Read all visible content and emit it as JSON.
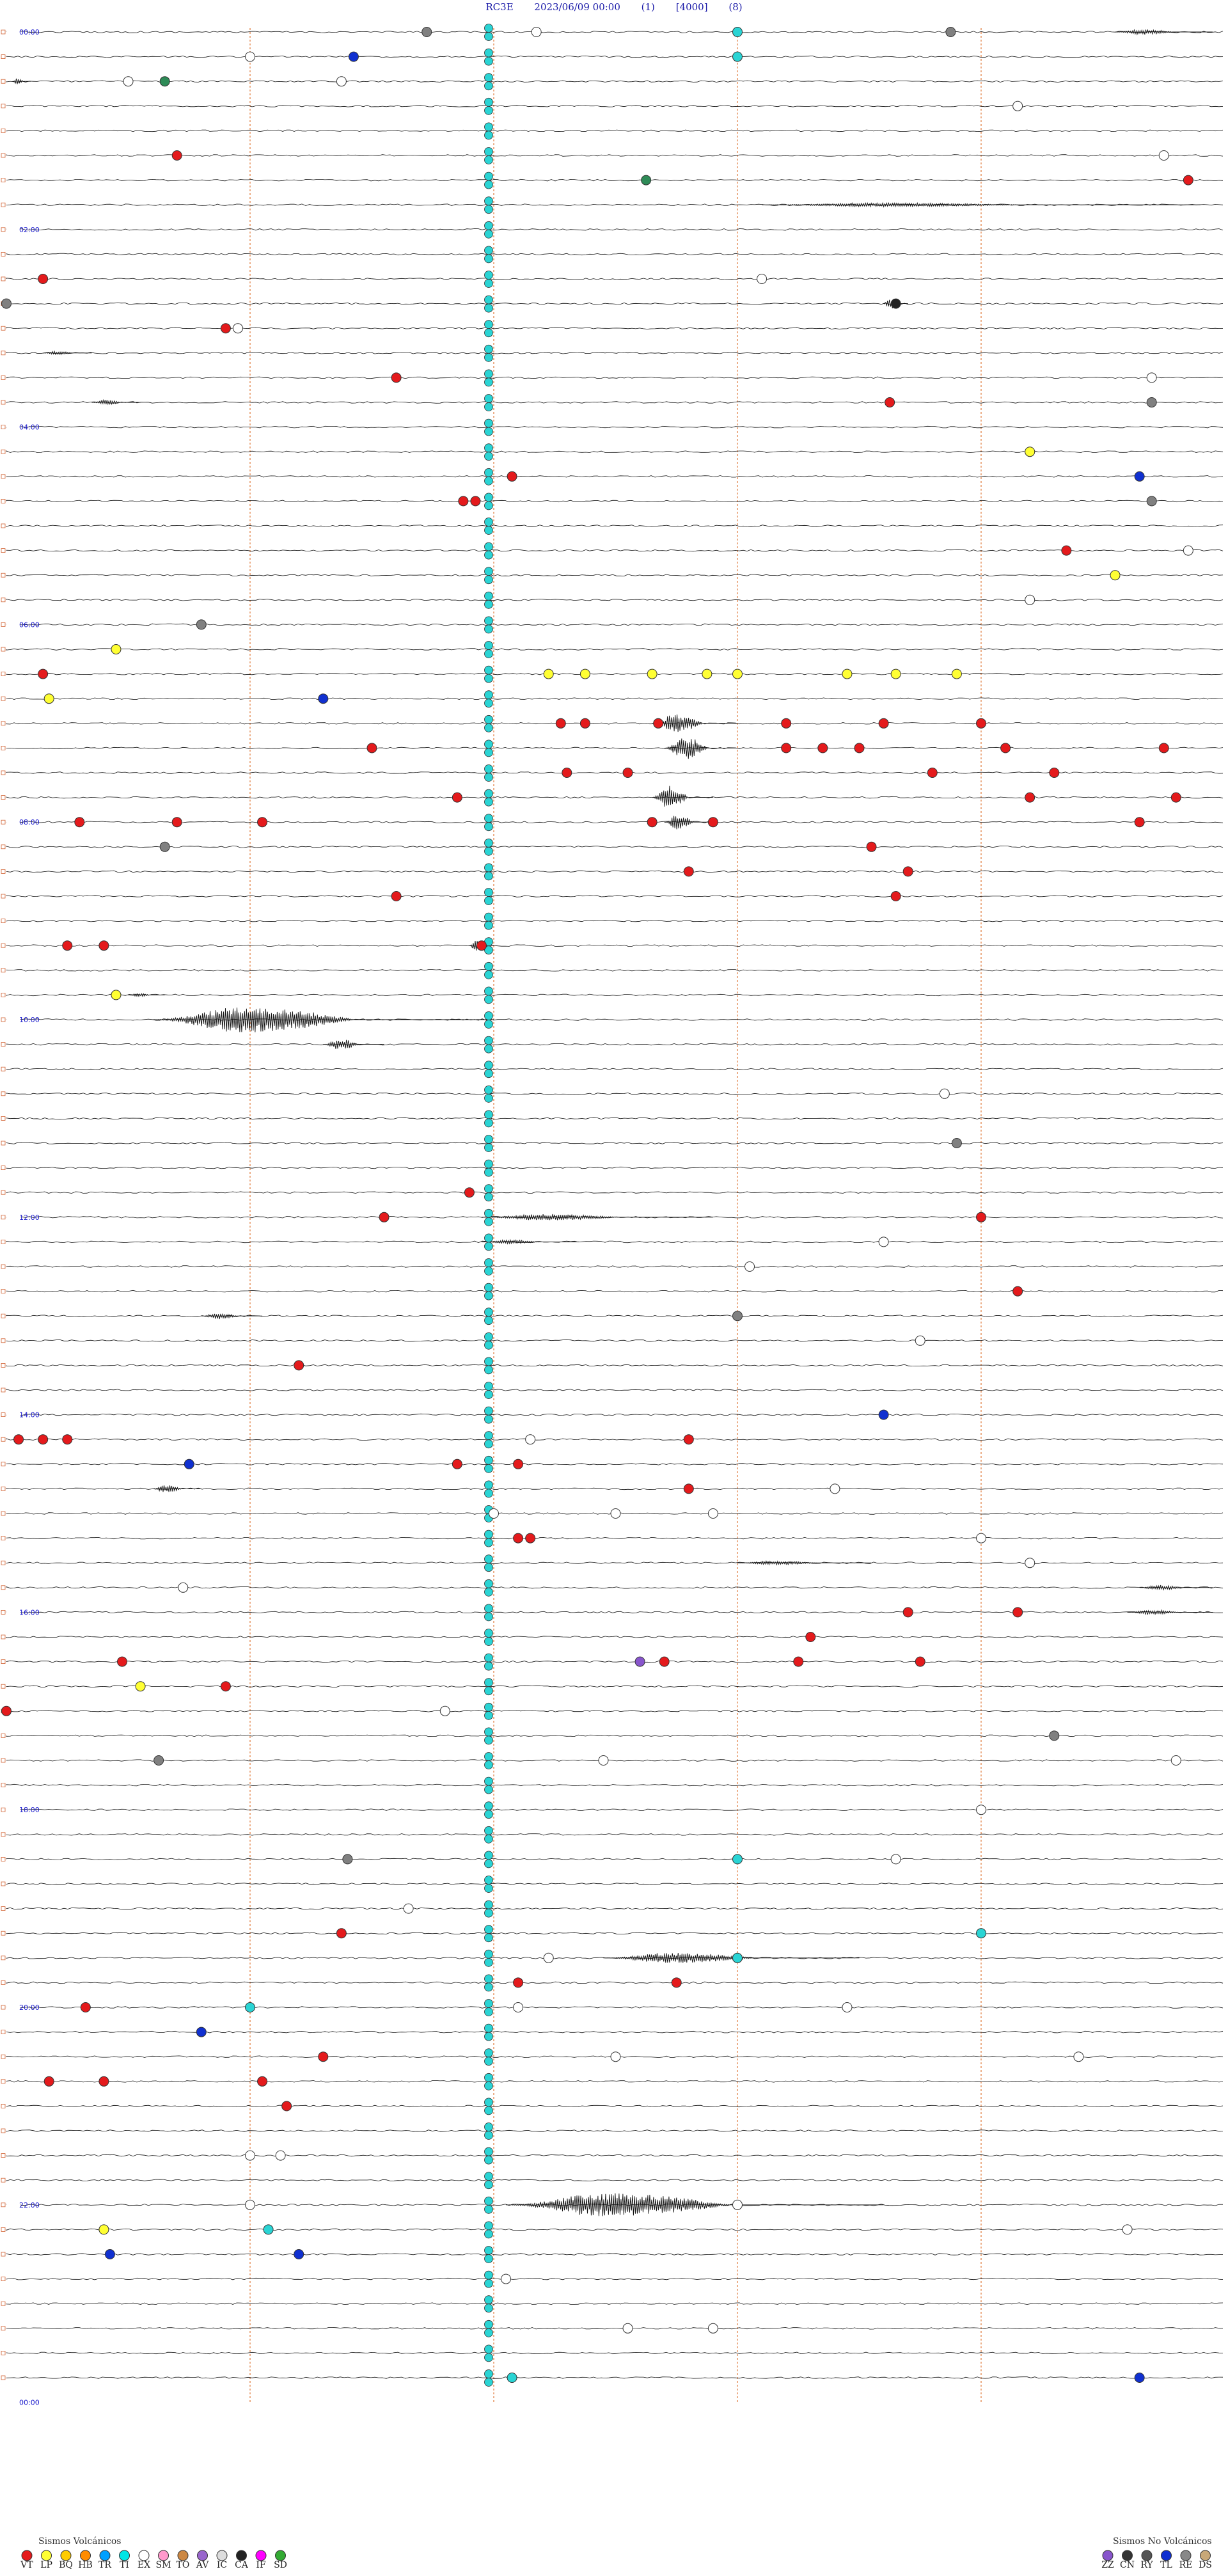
{
  "header": {
    "station": "RC3E",
    "datetime": "2023/06/09 00:00",
    "channel": "(1)",
    "gain": "[4000]",
    "filter": "(8)"
  },
  "chart_data": {
    "type": "helicorder",
    "trace_count": 96,
    "hour_labels": [
      {
        "row": 0,
        "text": "00:00"
      },
      {
        "row": 8,
        "text": "02:00"
      },
      {
        "row": 16,
        "text": "04:00"
      },
      {
        "row": 24,
        "text": "06:00"
      },
      {
        "row": 32,
        "text": "08:00"
      },
      {
        "row": 40,
        "text": "10:00"
      },
      {
        "row": 48,
        "text": "12:00"
      },
      {
        "row": 56,
        "text": "14:00"
      },
      {
        "row": 64,
        "text": "16:00"
      },
      {
        "row": 72,
        "text": "18:00"
      },
      {
        "row": 80,
        "text": "20:00"
      },
      {
        "row": 88,
        "text": "22:00"
      },
      {
        "row": 96,
        "text": "00:00"
      }
    ],
    "minute_markers": [
      0.2,
      0.4,
      0.6,
      0.8
    ],
    "colors": {
      "trace": "#111111",
      "marker_line": "#e07838",
      "hour_label": "#1a1acc",
      "ti_column": "#2ad4d4"
    },
    "ti_column_fraction": 0.4,
    "events": [
      {
        "row": 0,
        "t": 0.345,
        "c": "gray"
      },
      {
        "row": 0,
        "t": 0.435,
        "c": "white"
      },
      {
        "row": 0,
        "t": 0.6,
        "c": "cyan"
      },
      {
        "row": 0,
        "t": 0.775,
        "c": "gray"
      },
      {
        "row": 1,
        "t": 0.2,
        "c": "white"
      },
      {
        "row": 1,
        "t": 0.285,
        "c": "blue"
      },
      {
        "row": 1,
        "t": 0.6,
        "c": "cyan"
      },
      {
        "row": 2,
        "t": 0.1,
        "c": "white"
      },
      {
        "row": 2,
        "t": 0.13,
        "c": "green"
      },
      {
        "row": 2,
        "t": 0.275,
        "c": "white"
      },
      {
        "row": 3,
        "t": 0.83,
        "c": "white"
      },
      {
        "row": 5,
        "t": 0.14,
        "c": "red"
      },
      {
        "row": 5,
        "t": 0.95,
        "c": "white"
      },
      {
        "row": 6,
        "t": 0.525,
        "c": "green"
      },
      {
        "row": 6,
        "t": 0.97,
        "c": "red"
      },
      {
        "row": 10,
        "t": 0.03,
        "c": "red"
      },
      {
        "row": 10,
        "t": 0.62,
        "c": "white"
      },
      {
        "row": 11,
        "t": 0.0,
        "c": "gray"
      },
      {
        "row": 11,
        "t": 0.73,
        "c": "black"
      },
      {
        "row": 12,
        "t": 0.18,
        "c": "red"
      },
      {
        "row": 12,
        "t": 0.19,
        "c": "white"
      },
      {
        "row": 14,
        "t": 0.32,
        "c": "red"
      },
      {
        "row": 14,
        "t": 0.94,
        "c": "white"
      },
      {
        "row": 15,
        "t": 0.725,
        "c": "red"
      },
      {
        "row": 15,
        "t": 0.94,
        "c": "gray"
      },
      {
        "row": 17,
        "t": 0.84,
        "c": "yellow"
      },
      {
        "row": 18,
        "t": 0.415,
        "c": "red"
      },
      {
        "row": 18,
        "t": 0.93,
        "c": "blue"
      },
      {
        "row": 19,
        "t": 0.375,
        "c": "red"
      },
      {
        "row": 19,
        "t": 0.385,
        "c": "red"
      },
      {
        "row": 19,
        "t": 0.94,
        "c": "gray"
      },
      {
        "row": 21,
        "t": 0.87,
        "c": "red"
      },
      {
        "row": 21,
        "t": 0.97,
        "c": "white"
      },
      {
        "row": 22,
        "t": 0.91,
        "c": "yellow"
      },
      {
        "row": 23,
        "t": 0.84,
        "c": "white"
      },
      {
        "row": 24,
        "t": 0.16,
        "c": "gray"
      },
      {
        "row": 25,
        "t": 0.09,
        "c": "yellow"
      },
      {
        "row": 26,
        "t": 0.03,
        "c": "red"
      },
      {
        "row": 26,
        "t": 0.445,
        "c": "yellow"
      },
      {
        "row": 26,
        "t": 0.475,
        "c": "yellow"
      },
      {
        "row": 26,
        "t": 0.53,
        "c": "yellow"
      },
      {
        "row": 26,
        "t": 0.575,
        "c": "yellow"
      },
      {
        "row": 26,
        "t": 0.6,
        "c": "yellow"
      },
      {
        "row": 26,
        "t": 0.69,
        "c": "yellow"
      },
      {
        "row": 26,
        "t": 0.73,
        "c": "yellow"
      },
      {
        "row": 26,
        "t": 0.78,
        "c": "yellow"
      },
      {
        "row": 27,
        "t": 0.035,
        "c": "yellow"
      },
      {
        "row": 27,
        "t": 0.26,
        "c": "blue"
      },
      {
        "row": 28,
        "t": 0.455,
        "c": "red"
      },
      {
        "row": 28,
        "t": 0.475,
        "c": "red"
      },
      {
        "row": 28,
        "t": 0.535,
        "c": "red"
      },
      {
        "row": 28,
        "t": 0.64,
        "c": "red"
      },
      {
        "row": 28,
        "t": 0.72,
        "c": "red"
      },
      {
        "row": 28,
        "t": 0.8,
        "c": "red"
      },
      {
        "row": 29,
        "t": 0.3,
        "c": "red"
      },
      {
        "row": 29,
        "t": 0.64,
        "c": "red"
      },
      {
        "row": 29,
        "t": 0.67,
        "c": "red"
      },
      {
        "row": 29,
        "t": 0.7,
        "c": "red"
      },
      {
        "row": 29,
        "t": 0.82,
        "c": "red"
      },
      {
        "row": 29,
        "t": 0.95,
        "c": "red"
      },
      {
        "row": 30,
        "t": 0.46,
        "c": "red"
      },
      {
        "row": 30,
        "t": 0.51,
        "c": "red"
      },
      {
        "row": 30,
        "t": 0.76,
        "c": "red"
      },
      {
        "row": 30,
        "t": 0.86,
        "c": "red"
      },
      {
        "row": 31,
        "t": 0.37,
        "c": "red"
      },
      {
        "row": 31,
        "t": 0.84,
        "c": "red"
      },
      {
        "row": 31,
        "t": 0.96,
        "c": "red"
      },
      {
        "row": 32,
        "t": 0.06,
        "c": "red"
      },
      {
        "row": 32,
        "t": 0.14,
        "c": "red"
      },
      {
        "row": 32,
        "t": 0.21,
        "c": "red"
      },
      {
        "row": 32,
        "t": 0.53,
        "c": "red"
      },
      {
        "row": 32,
        "t": 0.58,
        "c": "red"
      },
      {
        "row": 32,
        "t": 0.93,
        "c": "red"
      },
      {
        "row": 33,
        "t": 0.13,
        "c": "gray"
      },
      {
        "row": 33,
        "t": 0.71,
        "c": "red"
      },
      {
        "row": 34,
        "t": 0.56,
        "c": "red"
      },
      {
        "row": 34,
        "t": 0.74,
        "c": "red"
      },
      {
        "row": 35,
        "t": 0.32,
        "c": "red"
      },
      {
        "row": 35,
        "t": 0.73,
        "c": "red"
      },
      {
        "row": 37,
        "t": 0.05,
        "c": "red"
      },
      {
        "row": 37,
        "t": 0.08,
        "c": "red"
      },
      {
        "row": 37,
        "t": 0.39,
        "c": "red"
      },
      {
        "row": 39,
        "t": 0.09,
        "c": "yellow"
      },
      {
        "row": 43,
        "t": 0.77,
        "c": "white"
      },
      {
        "row": 45,
        "t": 0.78,
        "c": "gray"
      },
      {
        "row": 47,
        "t": 0.38,
        "c": "red"
      },
      {
        "row": 48,
        "t": 0.31,
        "c": "red"
      },
      {
        "row": 48,
        "t": 0.8,
        "c": "red"
      },
      {
        "row": 49,
        "t": 0.72,
        "c": "white"
      },
      {
        "row": 50,
        "t": 0.61,
        "c": "white"
      },
      {
        "row": 51,
        "t": 0.83,
        "c": "red"
      },
      {
        "row": 52,
        "t": 0.6,
        "c": "gray"
      },
      {
        "row": 53,
        "t": 0.75,
        "c": "white"
      },
      {
        "row": 54,
        "t": 0.24,
        "c": "red"
      },
      {
        "row": 56,
        "t": 0.72,
        "c": "blue"
      },
      {
        "row": 57,
        "t": 0.01,
        "c": "red"
      },
      {
        "row": 57,
        "t": 0.03,
        "c": "red"
      },
      {
        "row": 57,
        "t": 0.05,
        "c": "red"
      },
      {
        "row": 57,
        "t": 0.43,
        "c": "white"
      },
      {
        "row": 57,
        "t": 0.56,
        "c": "red"
      },
      {
        "row": 58,
        "t": 0.15,
        "c": "blue"
      },
      {
        "row": 58,
        "t": 0.37,
        "c": "red"
      },
      {
        "row": 58,
        "t": 0.42,
        "c": "red"
      },
      {
        "row": 59,
        "t": 0.56,
        "c": "red"
      },
      {
        "row": 59,
        "t": 0.68,
        "c": "white"
      },
      {
        "row": 60,
        "t": 0.4,
        "c": "white"
      },
      {
        "row": 60,
        "t": 0.5,
        "c": "white"
      },
      {
        "row": 60,
        "t": 0.58,
        "c": "white"
      },
      {
        "row": 61,
        "t": 0.42,
        "c": "red"
      },
      {
        "row": 61,
        "t": 0.43,
        "c": "red"
      },
      {
        "row": 61,
        "t": 0.8,
        "c": "white"
      },
      {
        "row": 62,
        "t": 0.84,
        "c": "white"
      },
      {
        "row": 63,
        "t": 0.145,
        "c": "white"
      },
      {
        "row": 64,
        "t": 0.74,
        "c": "red"
      },
      {
        "row": 64,
        "t": 0.83,
        "c": "red"
      },
      {
        "row": 65,
        "t": 0.66,
        "c": "red"
      },
      {
        "row": 66,
        "t": 0.095,
        "c": "red"
      },
      {
        "row": 66,
        "t": 0.52,
        "c": "purple"
      },
      {
        "row": 66,
        "t": 0.54,
        "c": "red"
      },
      {
        "row": 66,
        "t": 0.65,
        "c": "red"
      },
      {
        "row": 66,
        "t": 0.75,
        "c": "red"
      },
      {
        "row": 67,
        "t": 0.11,
        "c": "yellow"
      },
      {
        "row": 67,
        "t": 0.18,
        "c": "red"
      },
      {
        "row": 68,
        "t": 0.0,
        "c": "red"
      },
      {
        "row": 68,
        "t": 0.36,
        "c": "white"
      },
      {
        "row": 69,
        "t": 0.86,
        "c": "gray"
      },
      {
        "row": 70,
        "t": 0.125,
        "c": "gray"
      },
      {
        "row": 70,
        "t": 0.49,
        "c": "white"
      },
      {
        "row": 70,
        "t": 0.96,
        "c": "white"
      },
      {
        "row": 72,
        "t": 0.8,
        "c": "white"
      },
      {
        "row": 74,
        "t": 0.28,
        "c": "gray"
      },
      {
        "row": 74,
        "t": 0.6,
        "c": "cyan"
      },
      {
        "row": 74,
        "t": 0.73,
        "c": "white"
      },
      {
        "row": 76,
        "t": 0.33,
        "c": "white"
      },
      {
        "row": 77,
        "t": 0.275,
        "c": "red"
      },
      {
        "row": 77,
        "t": 0.8,
        "c": "cyan"
      },
      {
        "row": 78,
        "t": 0.445,
        "c": "white"
      },
      {
        "row": 78,
        "t": 0.6,
        "c": "cyan"
      },
      {
        "row": 79,
        "t": 0.42,
        "c": "red"
      },
      {
        "row": 79,
        "t": 0.55,
        "c": "red"
      },
      {
        "row": 80,
        "t": 0.065,
        "c": "red"
      },
      {
        "row": 80,
        "t": 0.2,
        "c": "cyan"
      },
      {
        "row": 80,
        "t": 0.42,
        "c": "white"
      },
      {
        "row": 80,
        "t": 0.69,
        "c": "white"
      },
      {
        "row": 81,
        "t": 0.16,
        "c": "blue"
      },
      {
        "row": 82,
        "t": 0.26,
        "c": "red"
      },
      {
        "row": 82,
        "t": 0.5,
        "c": "white"
      },
      {
        "row": 82,
        "t": 0.88,
        "c": "white"
      },
      {
        "row": 83,
        "t": 0.035,
        "c": "red"
      },
      {
        "row": 83,
        "t": 0.08,
        "c": "red"
      },
      {
        "row": 83,
        "t": 0.21,
        "c": "red"
      },
      {
        "row": 84,
        "t": 0.23,
        "c": "red"
      },
      {
        "row": 86,
        "t": 0.2,
        "c": "white"
      },
      {
        "row": 86,
        "t": 0.225,
        "c": "white"
      },
      {
        "row": 88,
        "t": 0.2,
        "c": "white"
      },
      {
        "row": 88,
        "t": 0.6,
        "c": "white"
      },
      {
        "row": 89,
        "t": 0.08,
        "c": "yellow"
      },
      {
        "row": 89,
        "t": 0.215,
        "c": "cyan"
      },
      {
        "row": 89,
        "t": 0.92,
        "c": "white"
      },
      {
        "row": 90,
        "t": 0.085,
        "c": "blue"
      },
      {
        "row": 90,
        "t": 0.24,
        "c": "blue"
      },
      {
        "row": 91,
        "t": 0.41,
        "c": "white"
      },
      {
        "row": 93,
        "t": 0.51,
        "c": "white"
      },
      {
        "row": 93,
        "t": 0.58,
        "c": "white"
      },
      {
        "row": 95,
        "t": 0.415,
        "c": "cyan"
      },
      {
        "row": 95,
        "t": 0.93,
        "c": "blue"
      }
    ],
    "wiggles": [
      {
        "row": 0,
        "t0": 0.91,
        "t1": 0.99,
        "amp": 4
      },
      {
        "row": 2,
        "t0": 0.005,
        "t1": 0.02,
        "amp": 5
      },
      {
        "row": 7,
        "t0": 0.62,
        "t1": 0.98,
        "amp": 3
      },
      {
        "row": 11,
        "t0": 0.72,
        "t1": 0.74,
        "amp": 8
      },
      {
        "row": 13,
        "t0": 0.03,
        "t1": 0.07,
        "amp": 3
      },
      {
        "row": 15,
        "t0": 0.07,
        "t1": 0.11,
        "amp": 4
      },
      {
        "row": 28,
        "t0": 0.53,
        "t1": 0.6,
        "amp": 14
      },
      {
        "row": 29,
        "t0": 0.54,
        "t1": 0.6,
        "amp": 18
      },
      {
        "row": 31,
        "t0": 0.53,
        "t1": 0.58,
        "amp": 18
      },
      {
        "row": 32,
        "t0": 0.54,
        "t1": 0.58,
        "amp": 12
      },
      {
        "row": 37,
        "t0": 0.38,
        "t1": 0.4,
        "amp": 10
      },
      {
        "row": 39,
        "t0": 0.1,
        "t1": 0.13,
        "amp": 3
      },
      {
        "row": 40,
        "t0": 0.12,
        "t1": 0.4,
        "amp": 20
      },
      {
        "row": 41,
        "t0": 0.26,
        "t1": 0.31,
        "amp": 8
      },
      {
        "row": 48,
        "t0": 0.39,
        "t1": 0.58,
        "amp": 5
      },
      {
        "row": 49,
        "t0": 0.39,
        "t1": 0.47,
        "amp": 3
      },
      {
        "row": 52,
        "t0": 0.16,
        "t1": 0.21,
        "amp": 5
      },
      {
        "row": 59,
        "t0": 0.12,
        "t1": 0.16,
        "amp": 6
      },
      {
        "row": 62,
        "t0": 0.6,
        "t1": 0.71,
        "amp": 3
      },
      {
        "row": 63,
        "t0": 0.93,
        "t1": 0.99,
        "amp": 4
      },
      {
        "row": 64,
        "t0": 0.92,
        "t1": 0.99,
        "amp": 4
      },
      {
        "row": 78,
        "t0": 0.49,
        "t1": 0.7,
        "amp": 8
      },
      {
        "row": 88,
        "t0": 0.41,
        "t1": 0.72,
        "amp": 18
      }
    ]
  },
  "legend": {
    "volcanic_title": "Sismos Volcánicos",
    "non_volcanic_title": "Sismos No Volcánicos",
    "volcanic": [
      {
        "code": "VT",
        "color": "#e41a1c"
      },
      {
        "code": "LP",
        "color": "#ffff33"
      },
      {
        "code": "BQ",
        "color": "#ffcc00"
      },
      {
        "code": "HB",
        "color": "#ff8c00"
      },
      {
        "code": "TR",
        "color": "#00a0ff"
      },
      {
        "code": "TI",
        "color": "#00e5e5"
      },
      {
        "code": "EX",
        "color": "#ffffff"
      },
      {
        "code": "SM",
        "color": "#ff99cc"
      },
      {
        "code": "TO",
        "color": "#cc8844"
      },
      {
        "code": "AV",
        "color": "#9966cc"
      },
      {
        "code": "IC",
        "color": "#dddddd"
      },
      {
        "code": "CA",
        "color": "#222222"
      },
      {
        "code": "IF",
        "color": "#ff00ff"
      },
      {
        "code": "SD",
        "color": "#33aa33"
      }
    ],
    "non_volcanic": [
      {
        "code": "ZZ",
        "color": "#8855cc"
      },
      {
        "code": "CN",
        "color": "#333333"
      },
      {
        "code": "RY",
        "color": "#555555"
      },
      {
        "code": "TL",
        "color": "#1030d0"
      },
      {
        "code": "RE",
        "color": "#888888"
      },
      {
        "code": "DS",
        "color": "#c8a878"
      }
    ]
  }
}
